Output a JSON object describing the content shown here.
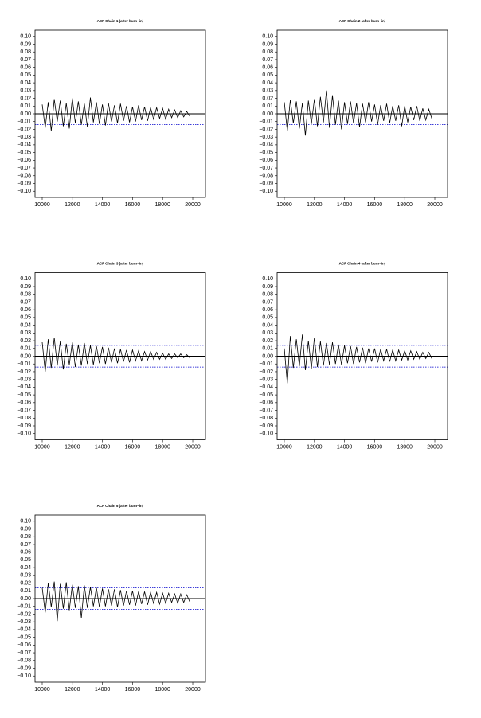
{
  "chart_data": [
    {
      "type": "line",
      "title": "ACF Chain 1 (after burn−in)",
      "color": "#000000",
      "x": [
        10000,
        10200,
        10400,
        10600,
        10800,
        11000,
        11200,
        11400,
        11600,
        11800,
        12000,
        12200,
        12400,
        12600,
        12800,
        13000,
        13200,
        13400,
        13600,
        13800,
        14000,
        14200,
        14400,
        14600,
        14800,
        15000,
        15200,
        15400,
        15600,
        15800,
        16000,
        16200,
        16400,
        16600,
        16800,
        17000,
        17200,
        17400,
        17600,
        17800,
        18000,
        18200,
        18400,
        18600,
        18800,
        19000,
        19200,
        19400,
        19600,
        19800
      ],
      "values": [
        0.012,
        -0.018,
        0.015,
        -0.022,
        0.019,
        -0.01,
        0.017,
        -0.016,
        0.014,
        -0.019,
        0.02,
        -0.012,
        0.016,
        -0.014,
        0.013,
        -0.017,
        0.021,
        -0.011,
        0.015,
        -0.013,
        0.012,
        -0.015,
        0.014,
        -0.01,
        0.011,
        -0.012,
        0.013,
        -0.009,
        0.01,
        -0.011,
        0.009,
        -0.01,
        0.011,
        -0.008,
        0.009,
        -0.009,
        0.008,
        -0.007,
        0.008,
        -0.006,
        0.007,
        -0.007,
        0.006,
        -0.005,
        0.005,
        -0.005,
        0.004,
        -0.004,
        0.003,
        -0.003
      ],
      "hlines": [
        {
          "value": 0,
          "color": "#000000",
          "dashed": false
        },
        {
          "value": 0.014,
          "color": "#0000cc",
          "dashed": true
        },
        {
          "value": -0.014,
          "color": "#0000cc",
          "dashed": true
        }
      ],
      "xlim": [
        9524,
        20846
      ],
      "xticks": [
        10000,
        12000,
        14000,
        16000,
        18000,
        20000
      ],
      "ylim": [
        -0.108,
        0.108
      ],
      "yticks": [
        {
          "value": 0.1,
          "label": "0.10"
        },
        {
          "value": 0.09,
          "label": "0.09"
        },
        {
          "value": 0.08,
          "label": "0.08"
        },
        {
          "value": 0.07,
          "label": "0.07"
        },
        {
          "value": 0.06,
          "label": "0.06"
        },
        {
          "value": 0.05,
          "label": "0.05"
        },
        {
          "value": 0.04,
          "label": "0.04"
        },
        {
          "value": 0.03,
          "label": "0.03"
        },
        {
          "value": 0.02,
          "label": "0.02"
        },
        {
          "value": 0.01,
          "label": "0.01"
        },
        {
          "value": 0,
          "label": "0.00"
        },
        {
          "value": -0.01,
          "label": "−0.01"
        },
        {
          "value": -0.02,
          "label": "−0.02"
        },
        {
          "value": -0.03,
          "label": "−0.03"
        },
        {
          "value": -0.04,
          "label": "−0.04"
        },
        {
          "value": -0.05,
          "label": "−0.05"
        },
        {
          "value": -0.06,
          "label": "−0.06"
        },
        {
          "value": -0.07,
          "label": "−0.07"
        },
        {
          "value": -0.08,
          "label": "−0.08"
        },
        {
          "value": -0.09,
          "label": "−0.09"
        },
        {
          "value": -0.1,
          "label": "−0.10"
        }
      ]
    },
    {
      "type": "line",
      "title": "ACF Chain 2 (after burn−in)",
      "color": "#000000",
      "x": [
        10000,
        10200,
        10400,
        10600,
        10800,
        11000,
        11200,
        11400,
        11600,
        11800,
        12000,
        12200,
        12400,
        12600,
        12800,
        13000,
        13200,
        13400,
        13600,
        13800,
        14000,
        14200,
        14400,
        14600,
        14800,
        15000,
        15200,
        15400,
        15600,
        15800,
        16000,
        16200,
        16400,
        16600,
        16800,
        17000,
        17200,
        17400,
        17600,
        17800,
        18000,
        18200,
        18400,
        18600,
        18800,
        19000,
        19200,
        19400,
        19600,
        19800
      ],
      "values": [
        0.015,
        -0.022,
        0.018,
        -0.012,
        0.016,
        -0.019,
        0.014,
        -0.028,
        0.017,
        -0.013,
        0.019,
        -0.016,
        0.022,
        -0.011,
        0.03,
        -0.018,
        0.024,
        -0.014,
        0.017,
        -0.02,
        0.015,
        -0.013,
        0.016,
        -0.012,
        0.014,
        -0.017,
        0.013,
        -0.011,
        0.015,
        -0.01,
        0.012,
        -0.014,
        0.011,
        -0.009,
        0.013,
        -0.012,
        0.01,
        -0.009,
        0.011,
        -0.016,
        0.01,
        -0.011,
        0.009,
        -0.008,
        0.01,
        -0.009,
        0.007,
        -0.008,
        0.006,
        -0.006
      ],
      "hlines": [
        {
          "value": 0,
          "color": "#000000",
          "dashed": false
        },
        {
          "value": 0.014,
          "color": "#0000cc",
          "dashed": true
        },
        {
          "value": -0.014,
          "color": "#0000cc",
          "dashed": true
        }
      ],
      "xlim": [
        9524,
        20846
      ],
      "xticks": [
        10000,
        12000,
        14000,
        16000,
        18000,
        20000
      ],
      "ylim": [
        -0.108,
        0.108
      ],
      "yticks": [
        {
          "value": 0.1,
          "label": "0.10"
        },
        {
          "value": 0.09,
          "label": "0.09"
        },
        {
          "value": 0.08,
          "label": "0.08"
        },
        {
          "value": 0.07,
          "label": "0.07"
        },
        {
          "value": 0.06,
          "label": "0.06"
        },
        {
          "value": 0.05,
          "label": "0.05"
        },
        {
          "value": 0.04,
          "label": "0.04"
        },
        {
          "value": 0.03,
          "label": "0.03"
        },
        {
          "value": 0.02,
          "label": "0.02"
        },
        {
          "value": 0.01,
          "label": "0.01"
        },
        {
          "value": 0,
          "label": "0.00"
        },
        {
          "value": -0.01,
          "label": "−0.01"
        },
        {
          "value": -0.02,
          "label": "−0.02"
        },
        {
          "value": -0.03,
          "label": "−0.03"
        },
        {
          "value": -0.04,
          "label": "−0.04"
        },
        {
          "value": -0.05,
          "label": "−0.05"
        },
        {
          "value": -0.06,
          "label": "−0.06"
        },
        {
          "value": -0.07,
          "label": "−0.07"
        },
        {
          "value": -0.08,
          "label": "−0.08"
        },
        {
          "value": -0.09,
          "label": "−0.09"
        },
        {
          "value": -0.1,
          "label": "−0.10"
        }
      ]
    },
    {
      "type": "line",
      "title": "ACF Chain 3 (after burn−in)",
      "color": "#000000",
      "x": [
        10000,
        10200,
        10400,
        10600,
        10800,
        11000,
        11200,
        11400,
        11600,
        11800,
        12000,
        12200,
        12400,
        12600,
        12800,
        13000,
        13200,
        13400,
        13600,
        13800,
        14000,
        14200,
        14400,
        14600,
        14800,
        15000,
        15200,
        15400,
        15600,
        15800,
        16000,
        16200,
        16400,
        16600,
        16800,
        17000,
        17200,
        17400,
        17600,
        17800,
        18000,
        18200,
        18400,
        18600,
        18800,
        19000,
        19200,
        19400,
        19600,
        19800
      ],
      "values": [
        0.018,
        -0.02,
        0.022,
        -0.015,
        0.024,
        -0.012,
        0.019,
        -0.017,
        0.016,
        -0.011,
        0.018,
        -0.014,
        0.015,
        -0.012,
        0.017,
        -0.01,
        0.014,
        -0.011,
        0.013,
        -0.009,
        0.012,
        -0.01,
        0.011,
        -0.008,
        0.01,
        -0.009,
        0.009,
        -0.007,
        0.008,
        -0.008,
        0.008,
        -0.006,
        0.007,
        -0.006,
        0.006,
        -0.005,
        0.006,
        -0.004,
        0.005,
        -0.004,
        0.004,
        -0.004,
        0.003,
        -0.003,
        0.003,
        -0.002,
        0.003,
        -0.002,
        0.002,
        -0.002
      ],
      "hlines": [
        {
          "value": 0,
          "color": "#000000",
          "dashed": false
        },
        {
          "value": 0.014,
          "color": "#0000cc",
          "dashed": true
        },
        {
          "value": -0.014,
          "color": "#0000cc",
          "dashed": true
        }
      ],
      "xlim": [
        9524,
        20846
      ],
      "xticks": [
        10000,
        12000,
        14000,
        16000,
        18000,
        20000
      ],
      "ylim": [
        -0.108,
        0.108
      ],
      "yticks": [
        {
          "value": 0.1,
          "label": "0.10"
        },
        {
          "value": 0.09,
          "label": "0.09"
        },
        {
          "value": 0.08,
          "label": "0.08"
        },
        {
          "value": 0.07,
          "label": "0.07"
        },
        {
          "value": 0.06,
          "label": "0.06"
        },
        {
          "value": 0.05,
          "label": "0.05"
        },
        {
          "value": 0.04,
          "label": "0.04"
        },
        {
          "value": 0.03,
          "label": "0.03"
        },
        {
          "value": 0.02,
          "label": "0.02"
        },
        {
          "value": 0.01,
          "label": "0.01"
        },
        {
          "value": 0,
          "label": "0.00"
        },
        {
          "value": -0.01,
          "label": "−0.01"
        },
        {
          "value": -0.02,
          "label": "−0.02"
        },
        {
          "value": -0.03,
          "label": "−0.03"
        },
        {
          "value": -0.04,
          "label": "−0.04"
        },
        {
          "value": -0.05,
          "label": "−0.05"
        },
        {
          "value": -0.06,
          "label": "−0.06"
        },
        {
          "value": -0.07,
          "label": "−0.07"
        },
        {
          "value": -0.08,
          "label": "−0.08"
        },
        {
          "value": -0.09,
          "label": "−0.09"
        },
        {
          "value": -0.1,
          "label": "−0.10"
        }
      ]
    },
    {
      "type": "line",
      "title": "ACF Chain 4 (after burn−in)",
      "color": "#000000",
      "x": [
        10000,
        10200,
        10400,
        10600,
        10800,
        11000,
        11200,
        11400,
        11600,
        11800,
        12000,
        12200,
        12400,
        12600,
        12800,
        13000,
        13200,
        13400,
        13600,
        13800,
        14000,
        14200,
        14400,
        14600,
        14800,
        15000,
        15200,
        15400,
        15600,
        15800,
        16000,
        16200,
        16400,
        16600,
        16800,
        17000,
        17200,
        17400,
        17600,
        17800,
        18000,
        18200,
        18400,
        18600,
        18800,
        19000,
        19200,
        19400,
        19600,
        19800
      ],
      "values": [
        0.01,
        -0.035,
        0.026,
        -0.015,
        0.022,
        -0.013,
        0.028,
        -0.018,
        0.02,
        -0.016,
        0.024,
        -0.014,
        0.019,
        -0.012,
        0.017,
        -0.011,
        0.018,
        -0.01,
        0.015,
        -0.011,
        0.014,
        -0.009,
        0.013,
        -0.01,
        0.012,
        -0.008,
        0.011,
        -0.009,
        0.01,
        -0.007,
        0.01,
        -0.008,
        0.009,
        -0.006,
        0.009,
        -0.007,
        0.008,
        -0.006,
        0.008,
        -0.005,
        0.007,
        -0.005,
        0.007,
        -0.004,
        0.006,
        -0.004,
        0.005,
        -0.003,
        0.005,
        -0.003
      ],
      "hlines": [
        {
          "value": 0,
          "color": "#000000",
          "dashed": false
        },
        {
          "value": 0.014,
          "color": "#0000cc",
          "dashed": true
        },
        {
          "value": -0.014,
          "color": "#0000cc",
          "dashed": true
        }
      ],
      "xlim": [
        9524,
        20846
      ],
      "xticks": [
        10000,
        12000,
        14000,
        16000,
        18000,
        20000
      ],
      "ylim": [
        -0.108,
        0.108
      ],
      "yticks": [
        {
          "value": 0.1,
          "label": "0.10"
        },
        {
          "value": 0.09,
          "label": "0.09"
        },
        {
          "value": 0.08,
          "label": "0.08"
        },
        {
          "value": 0.07,
          "label": "0.07"
        },
        {
          "value": 0.06,
          "label": "0.06"
        },
        {
          "value": 0.05,
          "label": "0.05"
        },
        {
          "value": 0.04,
          "label": "0.04"
        },
        {
          "value": 0.03,
          "label": "0.03"
        },
        {
          "value": 0.02,
          "label": "0.02"
        },
        {
          "value": 0.01,
          "label": "0.01"
        },
        {
          "value": 0,
          "label": "0.00"
        },
        {
          "value": -0.01,
          "label": "−0.01"
        },
        {
          "value": -0.02,
          "label": "−0.02"
        },
        {
          "value": -0.03,
          "label": "−0.03"
        },
        {
          "value": -0.04,
          "label": "−0.04"
        },
        {
          "value": -0.05,
          "label": "−0.05"
        },
        {
          "value": -0.06,
          "label": "−0.06"
        },
        {
          "value": -0.07,
          "label": "−0.07"
        },
        {
          "value": -0.08,
          "label": "−0.08"
        },
        {
          "value": -0.09,
          "label": "−0.09"
        },
        {
          "value": -0.1,
          "label": "−0.10"
        }
      ]
    },
    {
      "type": "line",
      "title": "ACF Chain 5 (after burn−in)",
      "color": "#000000",
      "x": [
        10000,
        10200,
        10400,
        10600,
        10800,
        11000,
        11200,
        11400,
        11600,
        11800,
        12000,
        12200,
        12400,
        12600,
        12800,
        13000,
        13200,
        13400,
        13600,
        13800,
        14000,
        14200,
        14400,
        14600,
        14800,
        15000,
        15200,
        15400,
        15600,
        15800,
        16000,
        16200,
        16400,
        16600,
        16800,
        17000,
        17200,
        17400,
        17600,
        17800,
        18000,
        18200,
        18400,
        18600,
        18800,
        19000,
        19200,
        19400,
        19600,
        19800
      ],
      "values": [
        0.014,
        -0.018,
        0.02,
        -0.011,
        0.022,
        -0.029,
        0.019,
        -0.013,
        0.021,
        -0.015,
        0.018,
        -0.012,
        0.016,
        -0.025,
        0.017,
        -0.012,
        0.015,
        -0.01,
        0.014,
        -0.011,
        0.013,
        -0.01,
        0.012,
        -0.009,
        0.012,
        -0.011,
        0.011,
        -0.009,
        0.01,
        -0.008,
        0.01,
        -0.009,
        0.009,
        -0.007,
        0.009,
        -0.008,
        0.008,
        -0.006,
        0.008,
        -0.007,
        0.007,
        -0.006,
        0.007,
        -0.005,
        0.006,
        -0.006,
        0.006,
        -0.005,
        0.005,
        -0.004
      ],
      "hlines": [
        {
          "value": 0,
          "color": "#000000",
          "dashed": false
        },
        {
          "value": 0.014,
          "color": "#0000cc",
          "dashed": true
        },
        {
          "value": -0.014,
          "color": "#0000cc",
          "dashed": true
        }
      ],
      "xlim": [
        9524,
        20846
      ],
      "xticks": [
        10000,
        12000,
        14000,
        16000,
        18000,
        20000
      ],
      "ylim": [
        -0.108,
        0.108
      ],
      "yticks": [
        {
          "value": 0.1,
          "label": "0.10"
        },
        {
          "value": 0.09,
          "label": "0.09"
        },
        {
          "value": 0.08,
          "label": "0.08"
        },
        {
          "value": 0.07,
          "label": "0.07"
        },
        {
          "value": 0.06,
          "label": "0.06"
        },
        {
          "value": 0.05,
          "label": "0.05"
        },
        {
          "value": 0.04,
          "label": "0.04"
        },
        {
          "value": 0.03,
          "label": "0.03"
        },
        {
          "value": 0.02,
          "label": "0.02"
        },
        {
          "value": 0.01,
          "label": "0.01"
        },
        {
          "value": 0,
          "label": "0.00"
        },
        {
          "value": -0.01,
          "label": "−0.01"
        },
        {
          "value": -0.02,
          "label": "−0.02"
        },
        {
          "value": -0.03,
          "label": "−0.03"
        },
        {
          "value": -0.04,
          "label": "−0.04"
        },
        {
          "value": -0.05,
          "label": "−0.05"
        },
        {
          "value": -0.06,
          "label": "−0.06"
        },
        {
          "value": -0.07,
          "label": "−0.07"
        },
        {
          "value": -0.08,
          "label": "−0.08"
        },
        {
          "value": -0.09,
          "label": "−0.09"
        },
        {
          "value": -0.1,
          "label": "−0.10"
        }
      ]
    }
  ]
}
